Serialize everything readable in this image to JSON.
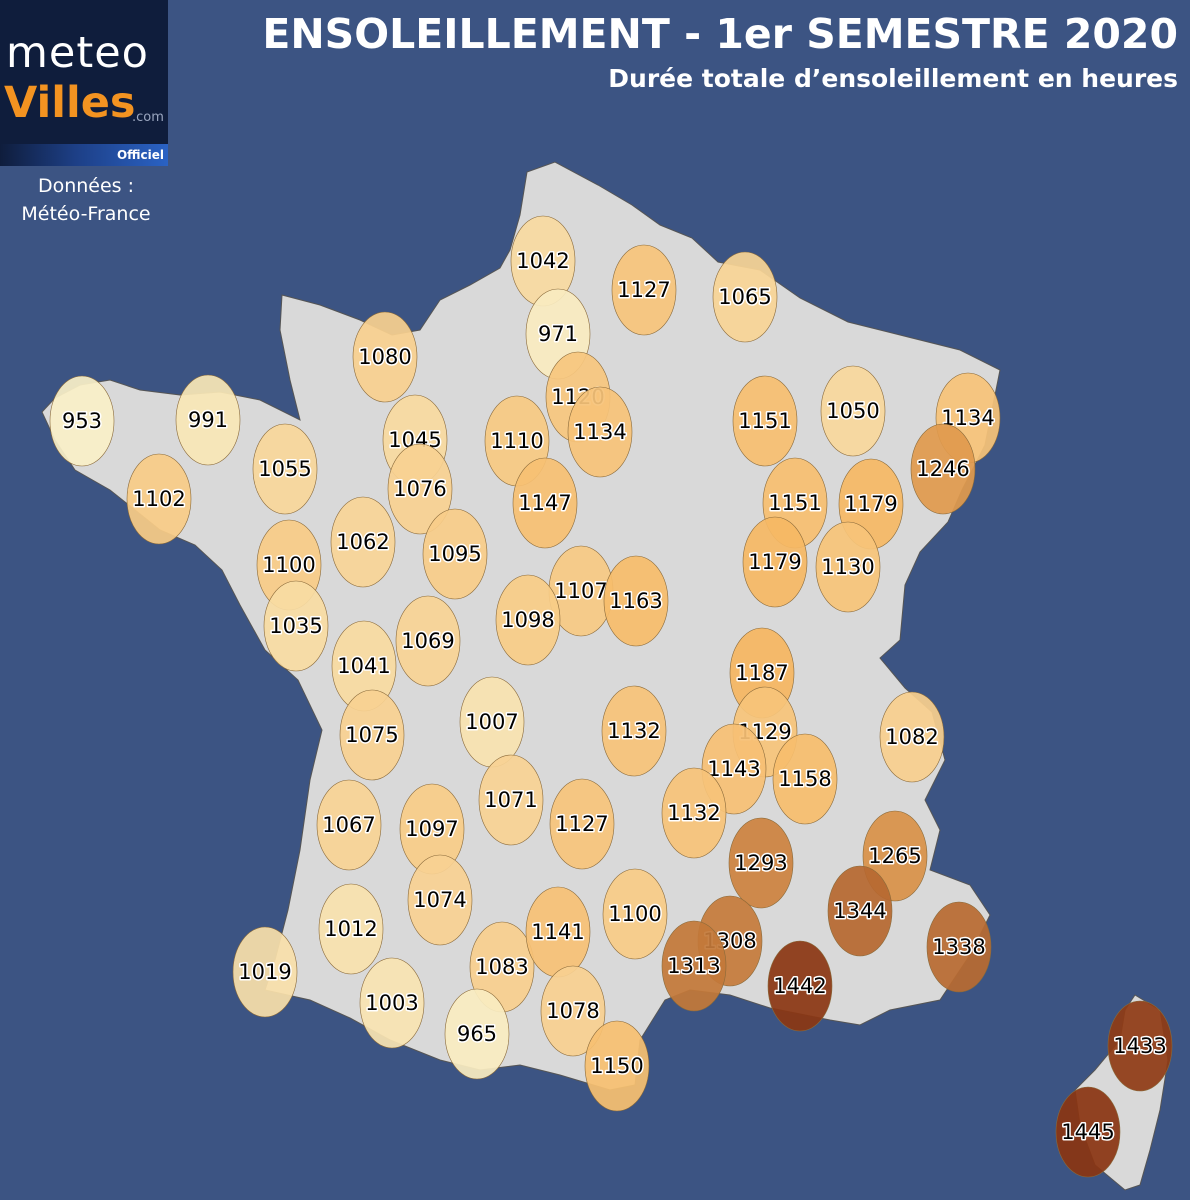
{
  "header": {
    "title": "ENSOLEILLEMENT - 1er SEMESTRE 2020",
    "subtitle": "Durée totale d’ensoleillement en heures"
  },
  "logo": {
    "line1": "meteo",
    "line2": "Villes",
    "dotcom": ".com",
    "tag": "Officiel"
  },
  "source": {
    "line1": "Données :",
    "line2": "Météo-France"
  },
  "colors": {
    "background": "#3c5483",
    "land": "#d9d9d9",
    "scale_low": "#f9f0c8",
    "scale_mid": "#f5b35c",
    "scale_high": "#8a3512"
  },
  "map_data": {
    "type": "choropleth",
    "region": "France",
    "unit": "heures",
    "stations": [
      953,
      991,
      1102,
      1055,
      1080,
      1045,
      1076,
      1062,
      1100,
      1035,
      1095,
      1042,
      971,
      1127,
      1065,
      1120,
      1134,
      1110,
      1147,
      1151,
      1050,
      1134,
      1246,
      1151,
      1179,
      1179,
      1130,
      1107,
      1163,
      1098,
      1069,
      1041,
      1075,
      1007,
      1132,
      1187,
      1129,
      1143,
      1158,
      1082,
      1067,
      1097,
      1071,
      1127,
      1132,
      1293,
      1265,
      1074,
      1012,
      1019,
      1003,
      1083,
      1141,
      1100,
      1308,
      1313,
      1344,
      1338,
      1442,
      965,
      1078,
      1150,
      1433,
      1445
    ]
  }
}
